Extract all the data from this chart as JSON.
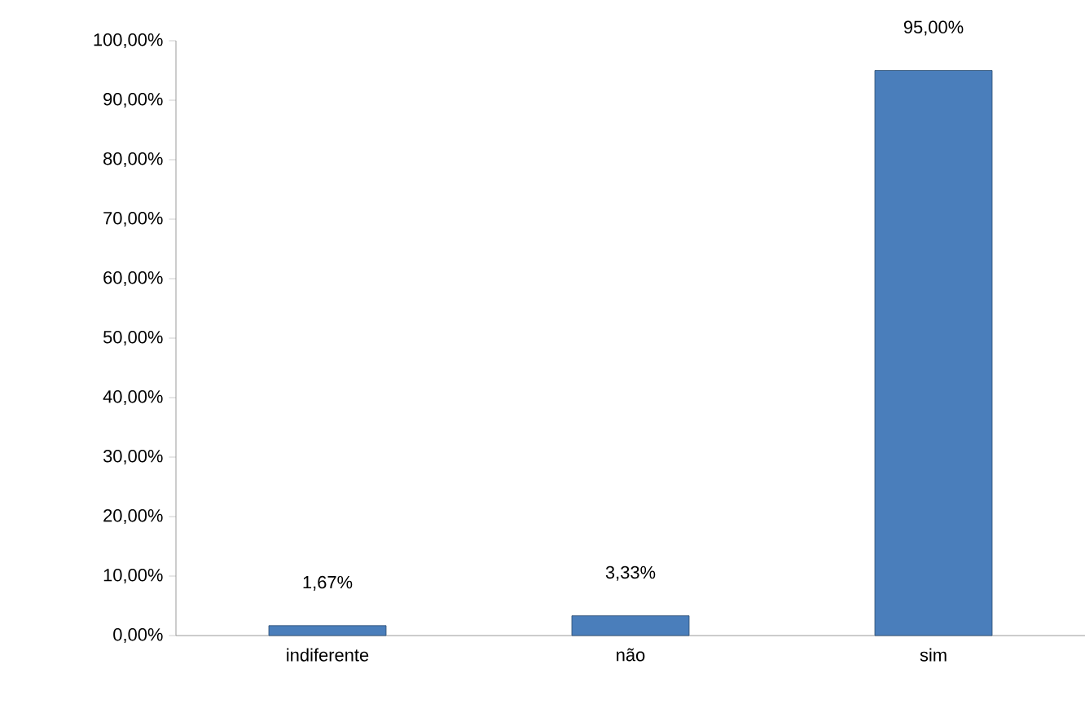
{
  "chart_data": {
    "type": "bar",
    "categories": [
      "indiferente",
      "não",
      "sim"
    ],
    "values": [
      1.67,
      3.33,
      95.0
    ],
    "value_labels": [
      "1,67%",
      "3,33%",
      "95,00%"
    ],
    "color": "#4a7ebb",
    "ylim": [
      0,
      100
    ],
    "yticks": [
      {
        "value": 0,
        "label": "0,00%"
      },
      {
        "value": 10,
        "label": "10,00%"
      },
      {
        "value": 20,
        "label": "20,00%"
      },
      {
        "value": 30,
        "label": "30,00%"
      },
      {
        "value": 40,
        "label": "40,00%"
      },
      {
        "value": 50,
        "label": "50,00%"
      },
      {
        "value": 60,
        "label": "60,00%"
      },
      {
        "value": 70,
        "label": "70,00%"
      },
      {
        "value": 80,
        "label": "80,00%"
      },
      {
        "value": 90,
        "label": "90,00%"
      },
      {
        "value": 100,
        "label": "100,00%"
      }
    ]
  }
}
